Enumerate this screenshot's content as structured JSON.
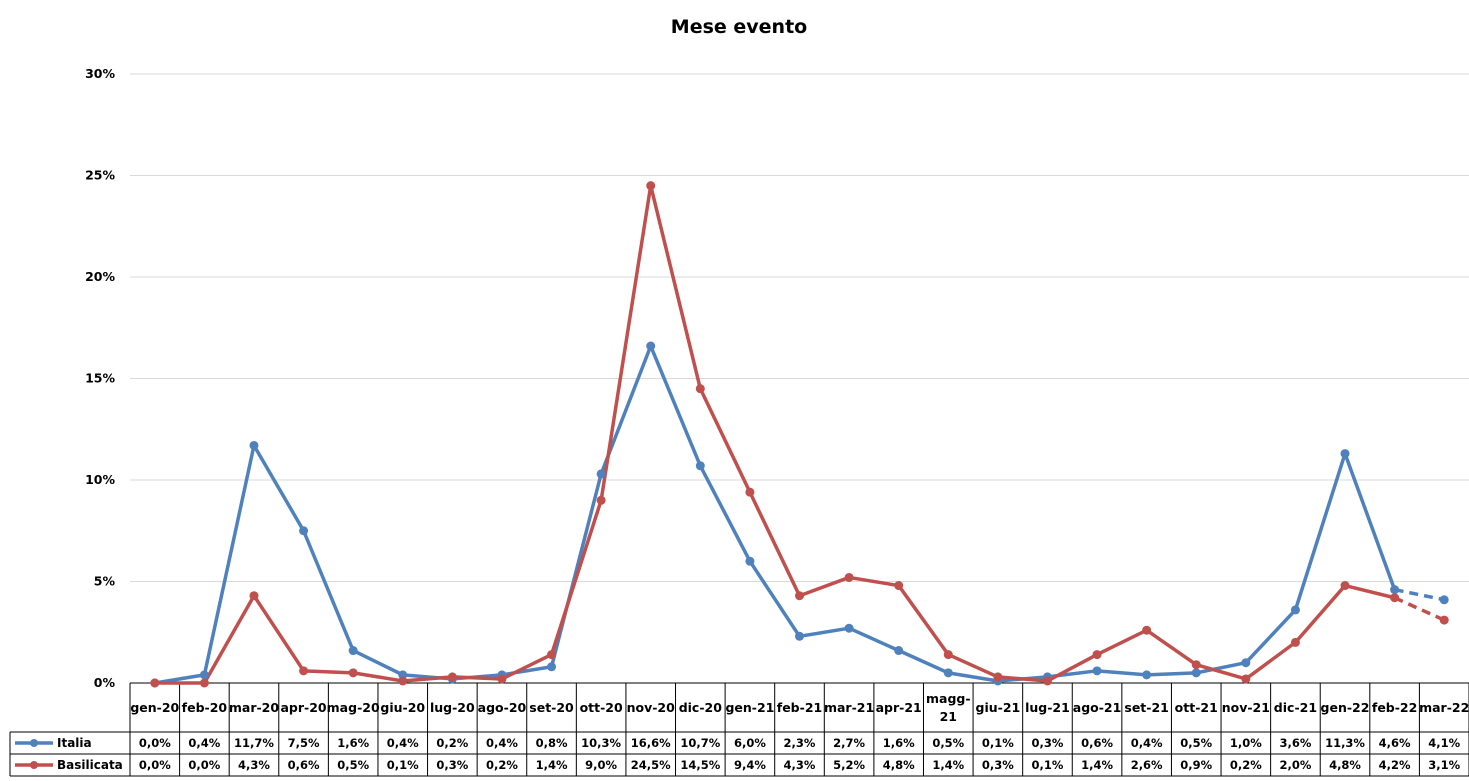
{
  "chart_data": {
    "type": "line",
    "title": "Mese evento",
    "xlabel": "",
    "ylabel": "",
    "ylim": [
      0,
      30
    ],
    "yticks": [
      "0%",
      "5%",
      "10%",
      "15%",
      "20%",
      "25%",
      "30%"
    ],
    "grid": true,
    "legend": "data-table",
    "categories": [
      "gen-20",
      "feb-20",
      "mar-20",
      "apr-20",
      "mag-20",
      "giu-20",
      "lug-20",
      "ago-20",
      "set-20",
      "ott-20",
      "nov-20",
      "dic-20",
      "gen-21",
      "feb-21",
      "mar-21",
      "apr-21",
      "magg-21",
      "giu-21",
      "lug-21",
      "ago-21",
      "set-21",
      "ott-21",
      "nov-21",
      "dic-21",
      "gen-22",
      "feb-22",
      "mar-22"
    ],
    "series": [
      {
        "name": "Italia",
        "color": "#4F81BD",
        "values": [
          0.0,
          0.4,
          11.7,
          7.5,
          1.6,
          0.4,
          0.2,
          0.4,
          0.8,
          10.3,
          16.6,
          10.7,
          6.0,
          2.3,
          2.7,
          1.6,
          0.5,
          0.1,
          0.3,
          0.6,
          0.4,
          0.5,
          1.0,
          3.6,
          11.3,
          4.6,
          4.1
        ],
        "labels": [
          "0,0%",
          "0,4%",
          "11,7%",
          "7,5%",
          "1,6%",
          "0,4%",
          "0,2%",
          "0,4%",
          "0,8%",
          "10,3%",
          "16,6%",
          "10,7%",
          "6,0%",
          "2,3%",
          "2,7%",
          "1,6%",
          "0,5%",
          "0,1%",
          "0,3%",
          "0,6%",
          "0,4%",
          "0,5%",
          "1,0%",
          "3,6%",
          "11,3%",
          "4,6%",
          "4,1%"
        ]
      },
      {
        "name": "Basilicata",
        "color": "#C0504D",
        "values": [
          0.0,
          0.0,
          4.3,
          0.6,
          0.5,
          0.1,
          0.3,
          0.2,
          1.4,
          9.0,
          24.5,
          14.5,
          9.4,
          4.3,
          5.2,
          4.8,
          1.4,
          0.3,
          0.1,
          1.4,
          2.6,
          0.9,
          0.2,
          2.0,
          4.8,
          4.2,
          3.1
        ],
        "labels": [
          "0,0%",
          "0,0%",
          "4,3%",
          "0,6%",
          "0,5%",
          "0,1%",
          "0,3%",
          "0,2%",
          "1,4%",
          "9,0%",
          "24,5%",
          "14,5%",
          "9,4%",
          "4,3%",
          "5,2%",
          "4,8%",
          "1,4%",
          "0,3%",
          "0,1%",
          "1,4%",
          "2,6%",
          "0,9%",
          "0,2%",
          "2,0%",
          "4,8%",
          "4,2%",
          "3,1%"
        ]
      }
    ],
    "dashed_last_segment": true
  }
}
